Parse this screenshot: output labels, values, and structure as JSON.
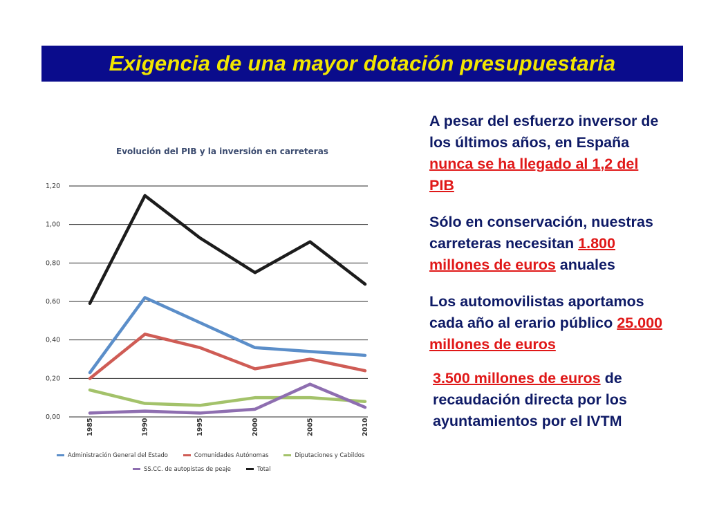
{
  "slide": {
    "title": "Exigencia de una mayor dotación presupuestaria"
  },
  "chart_data": {
    "type": "line",
    "title": "Evolución del PIB y la inversión en carreteras",
    "x": [
      "1985",
      "1990",
      "1995",
      "2000",
      "2005",
      "2010"
    ],
    "ylim": [
      0,
      1.2
    ],
    "yticks": [
      "0,00",
      "0,20",
      "0,40",
      "0,60",
      "0,80",
      "1,00",
      "1,20"
    ],
    "grid": true,
    "legend_position": "bottom",
    "series": [
      {
        "name": "Administración General del Estado",
        "color": "#5b8ec9",
        "values": [
          0.23,
          0.62,
          0.49,
          0.36,
          0.34,
          0.32
        ]
      },
      {
        "name": "Comunidades Autónomas",
        "color": "#cf5c55",
        "values": [
          0.2,
          0.43,
          0.36,
          0.25,
          0.3,
          0.24
        ]
      },
      {
        "name": "Diputaciones y Cabildos",
        "color": "#a3c26a",
        "values": [
          0.14,
          0.07,
          0.06,
          0.1,
          0.1,
          0.08
        ]
      },
      {
        "name": "SS.CC. de autopistas de peaje",
        "color": "#8e6eb0",
        "values": [
          0.02,
          0.03,
          0.02,
          0.04,
          0.17,
          0.05
        ]
      },
      {
        "name": "Total",
        "color": "#1c1c1c",
        "values": [
          0.59,
          1.15,
          0.93,
          0.75,
          0.91,
          0.69
        ]
      }
    ]
  },
  "text": {
    "p1_a": "A pesar del esfuerzo inversor de los últimos años, en España ",
    "p1_hl": "nunca se ha llegado al 1,2 del PIB",
    "p2_a": "Sólo en conservación, nuestras carreteras necesitan ",
    "p2_hl": "1.800 millones de euros",
    "p2_b": " anuales",
    "p3_a": "Los automovilistas aportamos cada año al erario público ",
    "p3_hl": "25.000 millones de euros",
    "p4_hl": "3.500 millones de euros",
    "p4_b": " de recaudación directa por los ayuntamientos por el IVTM"
  }
}
